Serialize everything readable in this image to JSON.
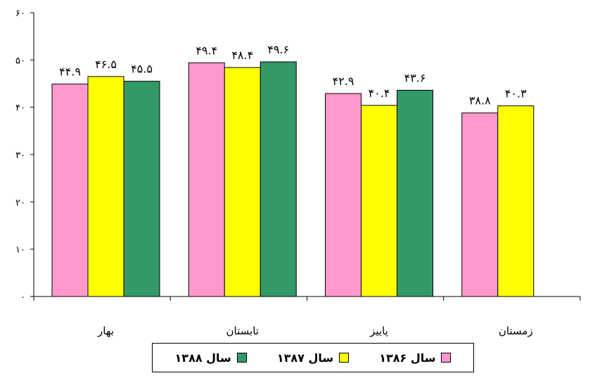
{
  "chart_data": {
    "type": "bar",
    "categories": [
      "بهار",
      "تابستان",
      "پاییز",
      "زمستان"
    ],
    "series": [
      {
        "name": "سال ۱۳۸۶",
        "color": "#FF99CC",
        "values": [
          44.9,
          49.4,
          42.9,
          38.8
        ],
        "labels": [
          "۴۴.۹",
          "۴۹.۴",
          "۴۲.۹",
          "۳۸.۸"
        ]
      },
      {
        "name": "سال ۱۳۸۷",
        "color": "#FFFF00",
        "values": [
          46.5,
          48.4,
          40.4,
          40.3
        ],
        "labels": [
          "۴۶.۵",
          "۴۸.۴",
          "۴۰.۴",
          "۴۰.۳"
        ]
      },
      {
        "name": "سال ۱۳۸۸",
        "color": "#339966",
        "values": [
          45.5,
          49.6,
          43.6,
          null
        ],
        "labels": [
          "۴۵.۵",
          "۴۹.۶",
          "۴۳.۶",
          null
        ]
      }
    ],
    "yticks": [
      0,
      10,
      20,
      30,
      40,
      50,
      60
    ],
    "ytick_labels": [
      "۰",
      "۱۰",
      "۲۰",
      "۳۰",
      "۴۰",
      "۵۰",
      "۶۰"
    ],
    "ylim": [
      0,
      60
    ],
    "title": "",
    "xlabel": "",
    "ylabel": "",
    "grid": false,
    "legend_position": "bottom"
  }
}
